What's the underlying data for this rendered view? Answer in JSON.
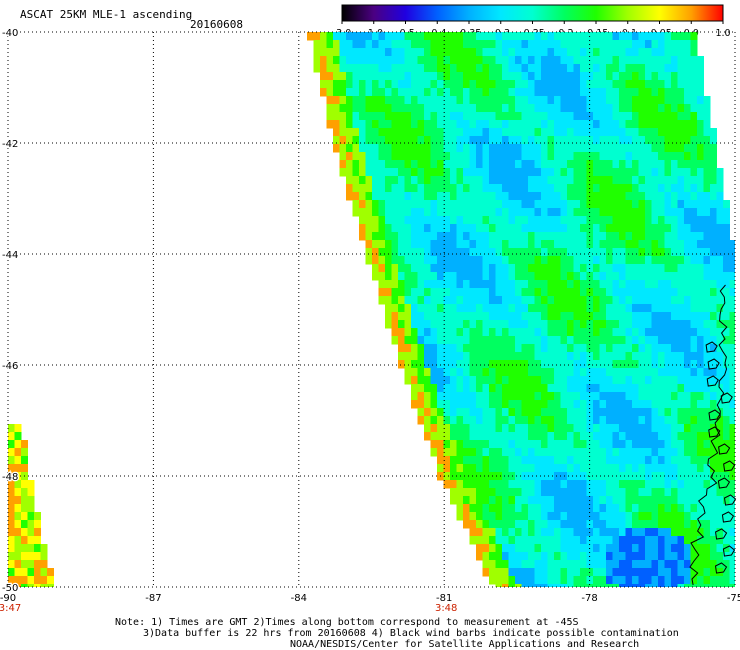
{
  "header": {
    "title": "ASCAT 25KM MLE-1 ascending",
    "date": "20160608"
  },
  "colorbar": {
    "labels": [
      "-3.0",
      "-1.0",
      "-0.5",
      "-0.4",
      "-0.35",
      "-0.3",
      "-0.25",
      "-0.2",
      "-0.15",
      "-0.1",
      "-0.05",
      "0.0",
      "1.0"
    ],
    "colors": [
      "#000000",
      "#4b0082",
      "#2000e0",
      "#0060ff",
      "#00b0ff",
      "#00e8ff",
      "#00ffd0",
      "#00ff60",
      "#20ff00",
      "#a0ff00",
      "#ffff00",
      "#ffa000",
      "#ff0000"
    ]
  },
  "chart_data": {
    "type": "heatmap",
    "title": "ASCAT 25KM MLE-1 ascending",
    "subtitle": "20160608",
    "x_ticks": [
      "-90",
      "-87",
      "-84",
      "-81",
      "-78",
      "-75"
    ],
    "y_ticks": [
      "-40",
      "-42",
      "-44",
      "-46",
      "-48",
      "-50"
    ],
    "xlim": [
      -90,
      -75
    ],
    "ylim": [
      -50,
      -40
    ],
    "grid": true,
    "time_labels": [
      {
        "lon": -90,
        "text": "3:47"
      },
      {
        "lon": -81,
        "text": "3:48"
      }
    ],
    "swath_east": {
      "west_edge": [
        [
          -40.0,
          -83.8
        ],
        [
          -42.0,
          -83.3
        ],
        [
          -44.0,
          -82.6
        ],
        [
          -46.0,
          -81.9
        ],
        [
          -48.0,
          -81.1
        ],
        [
          -50.0,
          -80.0
        ]
      ],
      "east_edge": [
        [
          -40.0,
          -75.8
        ],
        [
          -42.0,
          -75.4
        ],
        [
          -44.0,
          -75.0
        ],
        [
          -50.0,
          -75.0
        ]
      ],
      "typical_value": "-0.25",
      "edge_values": [
        "-0.1",
        "0.0"
      ],
      "low_region": {
        "lat": -49.5,
        "lon": -76.8,
        "value": "-0.4"
      }
    },
    "swath_west": {
      "east_edge": [
        [
          -47.0,
          -89.8
        ],
        [
          -48.0,
          -89.6
        ],
        [
          -49.0,
          -89.4
        ],
        [
          -50.0,
          -89.1
        ]
      ],
      "typical_value": "-0.1"
    }
  },
  "notes": {
    "line1": "Note: 1) Times are GMT 2)Times along bottom correspond to measurement at -45S",
    "line2": "3)Data buffer is 22 hrs from 20160608 4) Black wind barbs indicate possible contamination",
    "line3": "NOAA/NESDIS/Center for Satellite Applications and Research"
  }
}
